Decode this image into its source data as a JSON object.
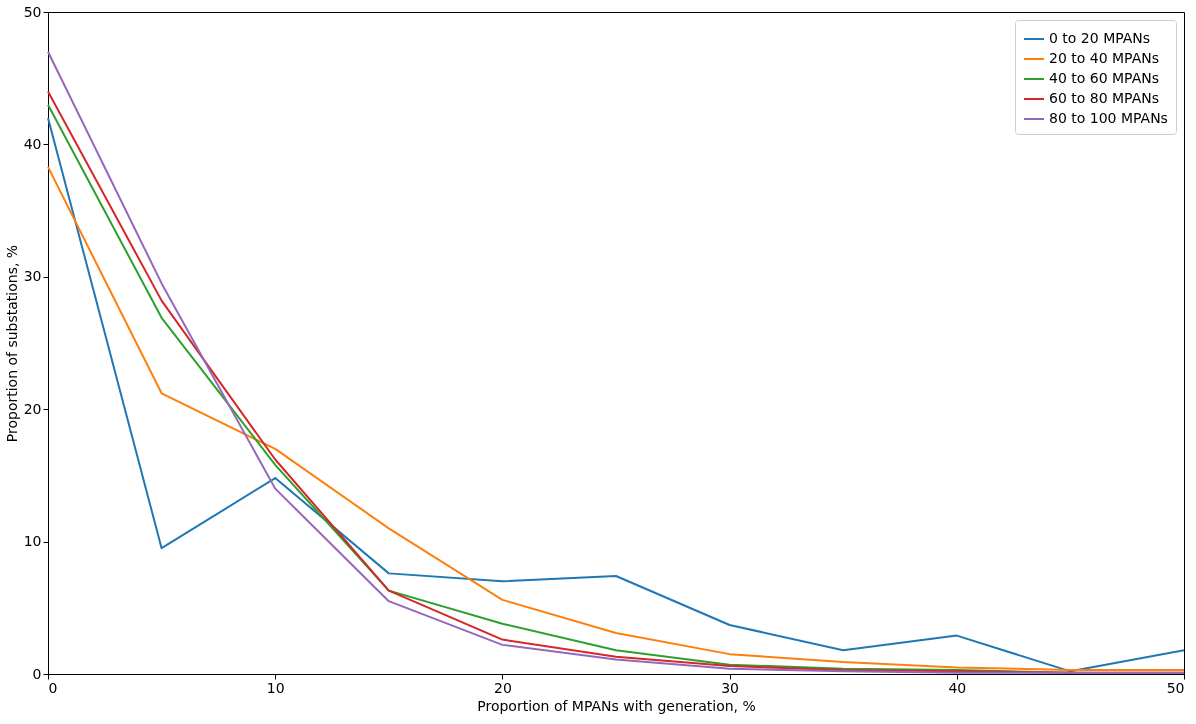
{
  "chart_data": {
    "type": "line",
    "xlabel": "Proportion of MPANs with generation, %",
    "ylabel": "Proportion of substations, %",
    "x": [
      0,
      5,
      10,
      15,
      20,
      25,
      30,
      35,
      40,
      45,
      50
    ],
    "series": [
      {
        "name": "0 to 20 MPANs",
        "color": "#1f77b4",
        "values": [
          42,
          9.5,
          14.8,
          7.6,
          7.0,
          7.4,
          3.7,
          1.8,
          2.9,
          0.2,
          1.8
        ]
      },
      {
        "name": "20 to 40 MPANs",
        "color": "#ff7f0e",
        "values": [
          38.3,
          21.2,
          17.0,
          11.0,
          5.6,
          3.1,
          1.5,
          0.9,
          0.5,
          0.3,
          0.3
        ]
      },
      {
        "name": "40 to 60 MPANs",
        "color": "#2ca02c",
        "values": [
          43,
          26.9,
          15.8,
          6.3,
          3.8,
          1.8,
          0.7,
          0.4,
          0.3,
          0.1,
          null
        ]
      },
      {
        "name": "60 to 80 MPANs",
        "color": "#d62728",
        "values": [
          44,
          28.2,
          16.2,
          6.3,
          2.6,
          1.3,
          0.6,
          0.3,
          0.2,
          0.1,
          0.1
        ]
      },
      {
        "name": "80 to 100 MPANs",
        "color": "#9467bd",
        "values": [
          47,
          29.5,
          14.0,
          5.5,
          2.2,
          1.1,
          0.4,
          0.2,
          0.1,
          0.1,
          0.1
        ]
      }
    ],
    "xlim": [
      0,
      50
    ],
    "ylim": [
      0,
      50
    ],
    "xticks": [
      0,
      10,
      20,
      30,
      40,
      50
    ],
    "yticks": [
      0,
      10,
      20,
      30,
      40,
      50
    ],
    "grid": false,
    "legend": "top right",
    "marker": "none",
    "line_style": "solid"
  }
}
